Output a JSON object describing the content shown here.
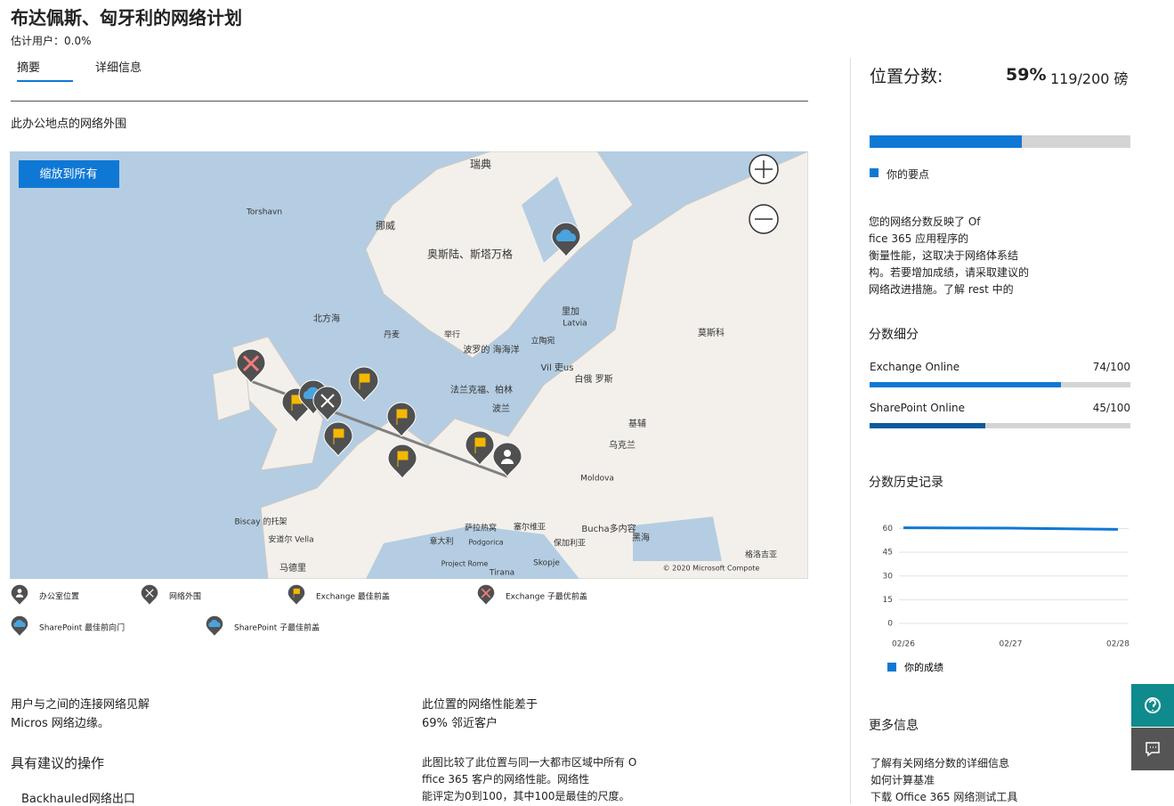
{
  "header": {
    "title": "布达佩斯、匈牙利的网络计划",
    "subtitle": "估计用户：0.0%"
  },
  "tabs": [
    "摘要",
    "详细信息"
  ],
  "map": {
    "heading": "此办公地点的网络外围",
    "zoom_button": "缩放到所有",
    "places": [
      "瑞典",
      "Torshavn",
      "挪威",
      "奥斯陆、斯塔万格",
      "北方海",
      "丹麦",
      "举行",
      "波罗的 海海洋",
      "里加",
      "Latvia",
      "立陶宛",
      "莫斯科",
      "Vil 吏us",
      "白俄 罗斯",
      "法兰克福、柏林",
      "波兰",
      "基辅",
      "乌克兰",
      "Moldova",
      "Biscay 的托架",
      "安道尔 Vella",
      "马德里",
      "萨拉热窝",
      "塞尔维亚",
      "Bucha多内容",
      "黑海",
      "意大利",
      "Podgorica",
      "保加利亚",
      "格洛吉亚",
      "Project Rome",
      "Skopje",
      "Tirana"
    ],
    "copyright": "© 2020 Microsoft Compote",
    "legend": [
      "办公室位置",
      "网络外围",
      "Exchange 最佳前盖",
      "Exchange 子最优前盖",
      "SharePoint 最佳前向门",
      "SharePoint 子最佳前盖"
    ]
  },
  "insights": [
    {
      "title": "用户与之间的连接网络见解",
      "text": "Micros 网络边缘。"
    },
    {
      "title": "此位置的网络性能差于",
      "text": "69% 邻近客户"
    }
  ],
  "actions": {
    "title": "具有建议的操作",
    "items": [
      "Backhauled网络出口"
    ]
  },
  "comparison": [
    "此图比较了此位置与同一大都市区域中所有 O",
    "ffice 365 客户的网络性能。网络性",
    "能评定为0到100，其中100是最佳的尺度。"
  ],
  "score": {
    "title": "位置分数:",
    "percent": {
      "value": 59,
      "label": "59%"
    },
    "points": "119/200 磅",
    "color": "#0f78d4",
    "legend": "你的要点",
    "description": [
      "您的网络分数反映了 Of",
      "fice 365 应用程序的",
      "衡量性能，这取决于网络体系结",
      "构。若要增加成绩，请采取建议的",
      "网络改进措施。了解 rest 中的"
    ],
    "breakdown_title": "分数细分",
    "breakdown": [
      {
        "name": "Exchange Online",
        "value": 74,
        "max": 100,
        "label": "74/100",
        "color": "#0f78d4"
      },
      {
        "name": "SharePoint Online",
        "value": 45,
        "max": 100,
        "label": "45/100",
        "color": "#0b5a9e"
      }
    ],
    "history_title": "分数历史记录"
  },
  "chart_data": {
    "type": "line",
    "x": [
      "02/26",
      "02/27",
      "02/28"
    ],
    "series": [
      {
        "name": "你的成绩",
        "color": "#0f78d4",
        "values": [
          60.5,
          60.3,
          59.5
        ]
      }
    ],
    "ylim": [
      0,
      62
    ],
    "yticks": [
      0,
      15,
      30,
      45,
      60
    ],
    "grid": true
  },
  "more_info": {
    "title": "更多信息",
    "links": [
      "了解有关网络分数的详细信息",
      "如何计算基准",
      "下载 Office 365 网络测试工具"
    ]
  }
}
